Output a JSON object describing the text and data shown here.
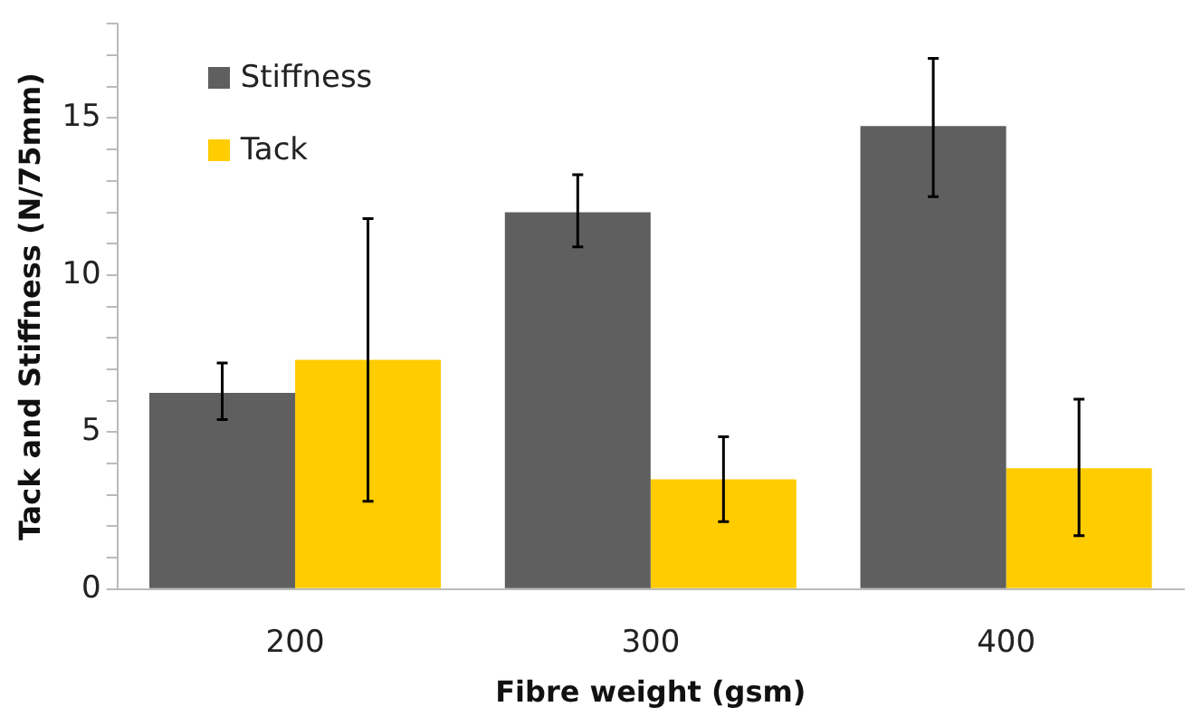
{
  "chart_data": {
    "type": "bar",
    "xlabel": "Fibre weight (gsm)",
    "ylabel": "Tack and Stiffness (N/75mm)",
    "categories": [
      "200",
      "300",
      "400"
    ],
    "series": [
      {
        "name": "Stiffness",
        "color": "#5f5f5f",
        "values": [
          6.25,
          12.0,
          14.75
        ],
        "errors": [
          [
            5.4,
            7.2
          ],
          [
            10.9,
            13.2
          ],
          [
            12.5,
            16.9
          ]
        ]
      },
      {
        "name": "Tack",
        "color": "#ffcc00",
        "values": [
          7.3,
          3.5,
          3.85
        ],
        "errors": [
          [
            2.8,
            11.8
          ],
          [
            2.15,
            4.85
          ],
          [
            1.7,
            6.05
          ]
        ]
      }
    ],
    "ylim": [
      0,
      18
    ],
    "yticks": [
      0,
      {
        "value": 1,
        "label": null
      },
      {
        "value": 2,
        "label": null
      },
      {
        "value": 3,
        "label": null
      },
      {
        "value": 4,
        "label": null
      },
      5,
      {
        "value": 6,
        "label": null
      },
      {
        "value": 7,
        "label": null
      },
      {
        "value": 8,
        "label": null
      },
      {
        "value": 9,
        "label": null
      },
      10,
      {
        "value": 11,
        "label": null
      },
      {
        "value": 12,
        "label": null
      },
      {
        "value": 13,
        "label": null
      },
      {
        "value": 14,
        "label": null
      },
      15,
      {
        "value": 16,
        "label": null
      },
      {
        "value": 17,
        "label": null
      },
      {
        "value": 18,
        "label": null
      }
    ],
    "grid": false,
    "legend": "top left"
  }
}
